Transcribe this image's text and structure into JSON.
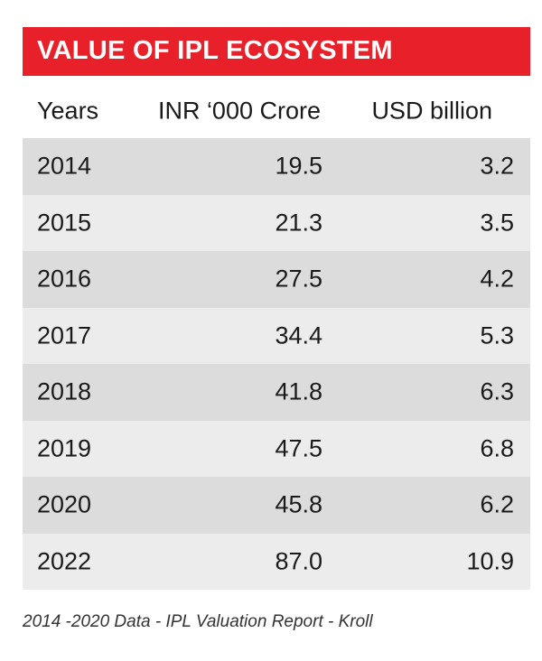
{
  "chart_data": {
    "type": "table",
    "title": "VALUE OF IPL ECOSYSTEM",
    "columns": [
      "Years",
      "INR ‘000 Crore",
      "USD billion"
    ],
    "rows": [
      [
        "2014",
        "19.5",
        "3.2"
      ],
      [
        "2015",
        "21.3",
        "3.5"
      ],
      [
        "2016",
        "27.5",
        "4.2"
      ],
      [
        "2017",
        "34.4",
        "5.3"
      ],
      [
        "2018",
        "41.8",
        "6.3"
      ],
      [
        "2019",
        "47.5",
        "6.8"
      ],
      [
        "2020",
        "45.8",
        "6.2"
      ],
      [
        "2022",
        "87.0",
        "10.9"
      ]
    ],
    "footnote": "2014 -2020 Data - IPL Valuation Report - Kroll"
  },
  "colors": {
    "banner": "#e8202a",
    "row_dark": "#dcdcdc",
    "row_light": "#ececec"
  }
}
